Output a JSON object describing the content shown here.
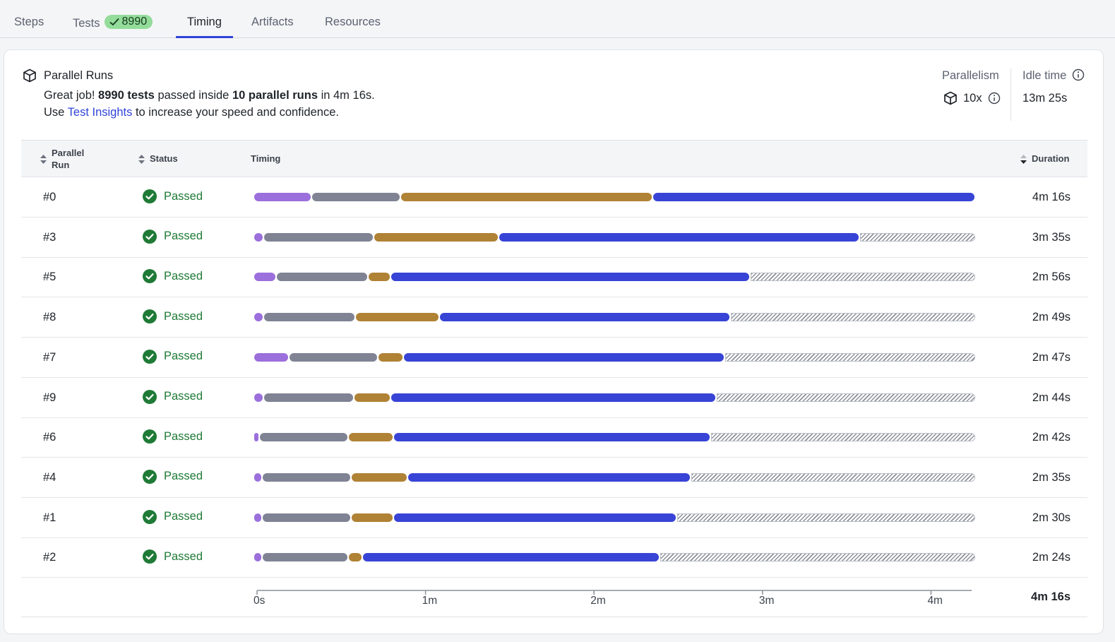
{
  "tabs": [
    {
      "label": "Steps"
    },
    {
      "label": "Tests",
      "badge": "8990"
    },
    {
      "label": "Timing"
    },
    {
      "label": "Artifacts"
    },
    {
      "label": "Resources"
    }
  ],
  "header": {
    "title": "Parallel Runs",
    "line1_prefix": "Great job! ",
    "line1_tests": "8990 tests",
    "line1_mid": " passed inside ",
    "line1_runs": "10 parallel runs",
    "line1_suffix": " in 4m 16s.",
    "line2_prefix": "Use ",
    "line2_link": "Test Insights",
    "line2_suffix": " to increase your speed and confidence.",
    "parallelism_label": "Parallelism",
    "parallelism_value": "10x",
    "idle_label": "Idle time",
    "idle_value": "13m 25s"
  },
  "table": {
    "col_run": "Parallel",
    "col_run_2": "Run",
    "col_status": "Status",
    "col_timing": "Timing",
    "col_duration": "Duration"
  },
  "colors": {
    "purple": "#9b6fdc",
    "gray": "#7f8393",
    "brown": "#b08235",
    "blue": "#3844d6",
    "passed": "#1f7a36"
  },
  "total_seconds": 256,
  "rows": [
    {
      "run": "#0",
      "status": "Passed",
      "duration": "4m 16s",
      "segments": [
        20.5,
        31.5,
        89.5,
        114.5
      ]
    },
    {
      "run": "#3",
      "status": "Passed",
      "duration": "3m 35s",
      "segments": [
        3.5,
        39.0,
        44.5,
        128.0
      ]
    },
    {
      "run": "#5",
      "status": "Passed",
      "duration": "2m 56s",
      "segments": [
        8.0,
        32.5,
        8.0,
        127.5
      ]
    },
    {
      "run": "#8",
      "status": "Passed",
      "duration": "2m 49s",
      "segments": [
        3.5,
        32.5,
        30.0,
        103.0
      ]
    },
    {
      "run": "#7",
      "status": "Passed",
      "duration": "2m 47s",
      "segments": [
        12.5,
        31.5,
        9.0,
        114.0
      ]
    },
    {
      "run": "#9",
      "status": "Passed",
      "duration": "2m 44s",
      "segments": [
        3.5,
        32.0,
        13.0,
        115.5
      ]
    },
    {
      "run": "#6",
      "status": "Passed",
      "duration": "2m 42s",
      "segments": [
        2.0,
        31.5,
        16.0,
        112.5
      ]
    },
    {
      "run": "#4",
      "status": "Passed",
      "duration": "2m 35s",
      "segments": [
        3.0,
        31.5,
        20.0,
        100.5
      ]
    },
    {
      "run": "#1",
      "status": "Passed",
      "duration": "2m 30s",
      "segments": [
        3.0,
        31.5,
        15.0,
        100.5
      ]
    },
    {
      "run": "#2",
      "status": "Passed",
      "duration": "2m 24s",
      "segments": [
        3.0,
        30.5,
        5.0,
        105.5
      ]
    }
  ],
  "axis": {
    "ticks": [
      {
        "label": "0s",
        "seconds": 0
      },
      {
        "label": "1m",
        "seconds": 60
      },
      {
        "label": "2m",
        "seconds": 120
      },
      {
        "label": "3m",
        "seconds": 180
      },
      {
        "label": "4m",
        "seconds": 240
      }
    ],
    "total_label": "4m 16s"
  }
}
